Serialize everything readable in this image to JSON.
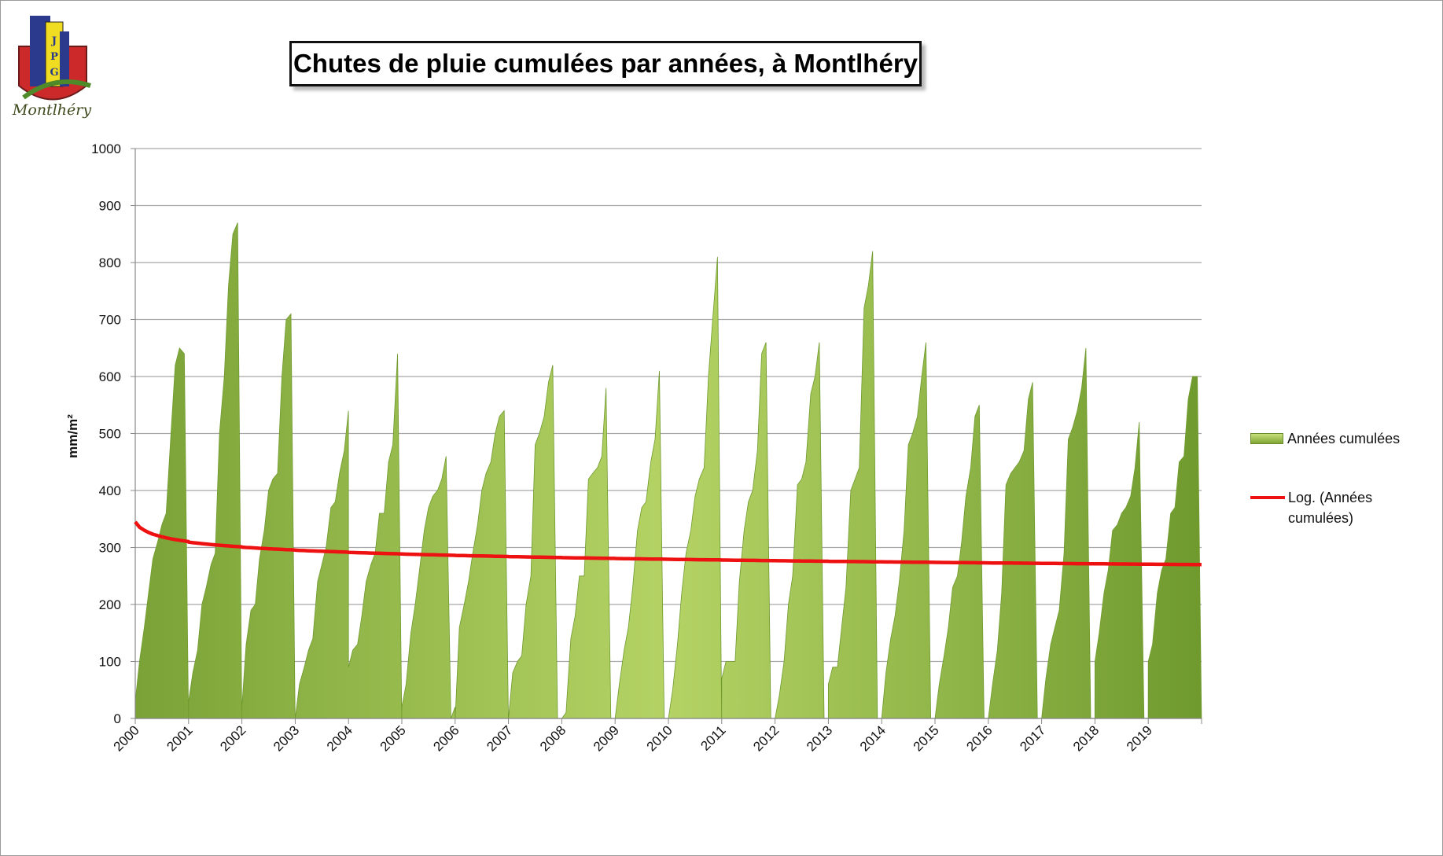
{
  "title": "Chutes de pluie cumulées par années, à Montlhéry",
  "logo": {
    "text": "Montlhéry",
    "letters": "JPG"
  },
  "legend": {
    "area_label": "Années cumulées",
    "trend_label": "Log. (Années cumulées)"
  },
  "colors": {
    "area_light": "#bcd86a",
    "area_dark": "#77a032",
    "trend": "#ee1111",
    "grid": "#a8a8a8"
  },
  "chart_data": {
    "type": "area",
    "ylabel": "mm/m²",
    "xlabel": "",
    "ylim": [
      0,
      1000
    ],
    "yticks": [
      0,
      100,
      200,
      300,
      400,
      500,
      600,
      700,
      800,
      900,
      1000
    ],
    "xticks": [
      "2000",
      "2001",
      "2002",
      "2003",
      "2004",
      "2005",
      "2006",
      "2007",
      "2008",
      "2009",
      "2010",
      "2011",
      "2012",
      "2013",
      "2014",
      "2015",
      "2016",
      "2017",
      "2018",
      "2019"
    ],
    "grid": true,
    "legend_position": "right",
    "series": [
      {
        "name": "Années cumulées",
        "type": "area",
        "x": [
          2000.0,
          2000.08,
          2000.17,
          2000.25,
          2000.33,
          2000.42,
          2000.5,
          2000.58,
          2000.67,
          2000.75,
          2000.83,
          2000.92,
          2000.999,
          2001.0,
          2001.08,
          2001.17,
          2001.25,
          2001.33,
          2001.42,
          2001.5,
          2001.58,
          2001.67,
          2001.75,
          2001.83,
          2001.92,
          2001.999,
          2002.0,
          2002.08,
          2002.17,
          2002.25,
          2002.33,
          2002.42,
          2002.5,
          2002.58,
          2002.67,
          2002.75,
          2002.83,
          2002.92,
          2002.999,
          2003.0,
          2003.08,
          2003.17,
          2003.25,
          2003.33,
          2003.42,
          2003.5,
          2003.58,
          2003.67,
          2003.75,
          2003.83,
          2003.92,
          2003.999,
          2004.0,
          2004.08,
          2004.17,
          2004.25,
          2004.33,
          2004.42,
          2004.5,
          2004.58,
          2004.67,
          2004.75,
          2004.83,
          2004.92,
          2004.999,
          2005.0,
          2005.08,
          2005.17,
          2005.25,
          2005.33,
          2005.42,
          2005.5,
          2005.58,
          2005.67,
          2005.75,
          2005.83,
          2005.92,
          2005.999,
          2006.0,
          2006.08,
          2006.17,
          2006.25,
          2006.33,
          2006.42,
          2006.5,
          2006.58,
          2006.67,
          2006.75,
          2006.83,
          2006.92,
          2006.999,
          2007.0,
          2007.08,
          2007.17,
          2007.25,
          2007.33,
          2007.42,
          2007.5,
          2007.58,
          2007.67,
          2007.75,
          2007.83,
          2007.92,
          2007.999,
          2008.0,
          2008.08,
          2008.17,
          2008.25,
          2008.33,
          2008.42,
          2008.5,
          2008.58,
          2008.67,
          2008.75,
          2008.83,
          2008.92,
          2008.999,
          2009.0,
          2009.08,
          2009.17,
          2009.25,
          2009.33,
          2009.42,
          2009.5,
          2009.58,
          2009.67,
          2009.75,
          2009.83,
          2009.92,
          2009.999,
          2010.0,
          2010.08,
          2010.17,
          2010.25,
          2010.33,
          2010.42,
          2010.5,
          2010.58,
          2010.67,
          2010.75,
          2010.83,
          2010.92,
          2010.999,
          2011.0,
          2011.08,
          2011.17,
          2011.25,
          2011.33,
          2011.42,
          2011.5,
          2011.58,
          2011.67,
          2011.75,
          2011.83,
          2011.92,
          2011.999,
          2012.0,
          2012.08,
          2012.17,
          2012.25,
          2012.33,
          2012.42,
          2012.5,
          2012.58,
          2012.67,
          2012.75,
          2012.83,
          2012.92,
          2012.999,
          2013.0,
          2013.08,
          2013.17,
          2013.25,
          2013.33,
          2013.42,
          2013.5,
          2013.58,
          2013.67,
          2013.75,
          2013.83,
          2013.92,
          2013.999,
          2014.0,
          2014.08,
          2014.17,
          2014.25,
          2014.33,
          2014.42,
          2014.5,
          2014.58,
          2014.67,
          2014.75,
          2014.83,
          2014.92,
          2014.999,
          2015.0,
          2015.08,
          2015.17,
          2015.25,
          2015.33,
          2015.42,
          2015.5,
          2015.58,
          2015.67,
          2015.75,
          2015.83,
          2015.92,
          2015.999,
          2016.0,
          2016.08,
          2016.17,
          2016.25,
          2016.33,
          2016.42,
          2016.5,
          2016.58,
          2016.67,
          2016.75,
          2016.83,
          2016.92,
          2016.999,
          2017.0,
          2017.08,
          2017.17,
          2017.25,
          2017.33,
          2017.42,
          2017.5,
          2017.58,
          2017.67,
          2017.75,
          2017.83,
          2017.92,
          2017.999,
          2018.0,
          2018.08,
          2018.17,
          2018.25,
          2018.33,
          2018.42,
          2018.5,
          2018.58,
          2018.67,
          2018.75,
          2018.83,
          2018.92,
          2018.999,
          2019.0,
          2019.08,
          2019.17,
          2019.25,
          2019.33,
          2019.42,
          2019.5,
          2019.58,
          2019.67,
          2019.75,
          2019.83,
          2019.92,
          2019.999
        ],
        "y": [
          30,
          100,
          160,
          220,
          280,
          310,
          340,
          360,
          500,
          620,
          650,
          640,
          0,
          30,
          80,
          120,
          200,
          230,
          270,
          290,
          500,
          600,
          760,
          850,
          870,
          0,
          20,
          130,
          190,
          200,
          280,
          330,
          400,
          420,
          430,
          600,
          700,
          710,
          0,
          0,
          60,
          90,
          120,
          140,
          240,
          270,
          300,
          370,
          380,
          430,
          470,
          540,
          90,
          120,
          130,
          180,
          240,
          270,
          290,
          360,
          360,
          450,
          480,
          640,
          0,
          20,
          60,
          150,
          200,
          260,
          330,
          370,
          390,
          400,
          420,
          460,
          0,
          20,
          0,
          160,
          200,
          240,
          290,
          340,
          400,
          430,
          450,
          500,
          530,
          540,
          0,
          0,
          80,
          100,
          110,
          200,
          250,
          480,
          500,
          530,
          590,
          620,
          0,
          0,
          0,
          10,
          140,
          180,
          250,
          250,
          420,
          430,
          440,
          460,
          580,
          0,
          0,
          0,
          60,
          120,
          160,
          230,
          330,
          370,
          380,
          450,
          490,
          610,
          0,
          0,
          0,
          50,
          130,
          220,
          290,
          330,
          390,
          420,
          440,
          600,
          700,
          810,
          0,
          70,
          100,
          100,
          100,
          240,
          330,
          380,
          400,
          470,
          640,
          660,
          0,
          0,
          0,
          40,
          100,
          200,
          250,
          410,
          420,
          450,
          570,
          600,
          660,
          0,
          0,
          60,
          90,
          90,
          160,
          230,
          400,
          420,
          440,
          720,
          760,
          820,
          0,
          0,
          0,
          80,
          140,
          180,
          240,
          330,
          480,
          500,
          530,
          600,
          660,
          0,
          0,
          0,
          60,
          110,
          160,
          230,
          250,
          310,
          390,
          440,
          530,
          550,
          0,
          0,
          0,
          60,
          120,
          220,
          410,
          430,
          440,
          450,
          470,
          560,
          590,
          0,
          0,
          0,
          70,
          130,
          160,
          190,
          290,
          490,
          510,
          540,
          580,
          650,
          0,
          0,
          100,
          150,
          220,
          260,
          330,
          340,
          360,
          370,
          390,
          440,
          520,
          0,
          0,
          100,
          130,
          220,
          260,
          280,
          360,
          370,
          450,
          460,
          560,
          600,
          600,
          0
        ]
      },
      {
        "name": "Log. (Années cumulées)",
        "type": "line",
        "note_value_range": [
          270,
          345
        ]
      }
    ]
  }
}
